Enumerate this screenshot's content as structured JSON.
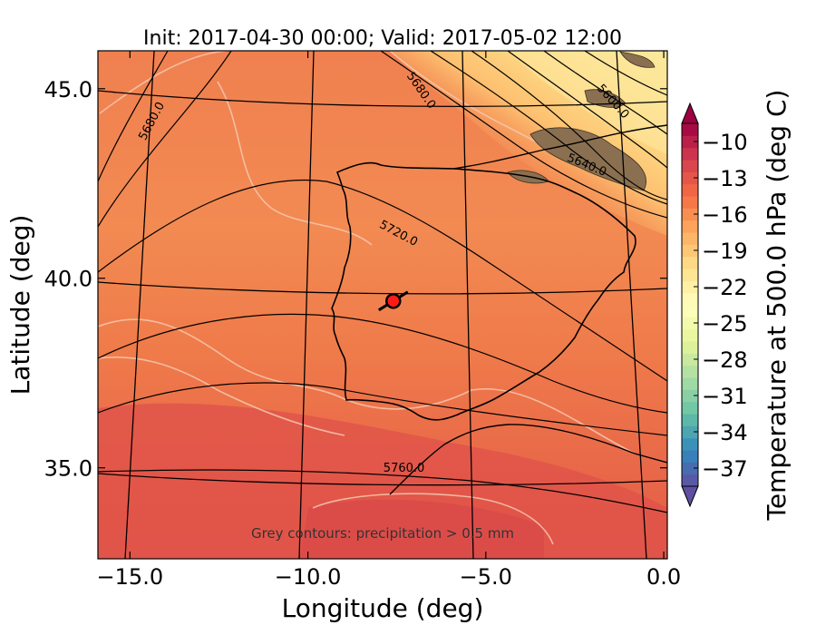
{
  "chart_data": {
    "type": "heatmap",
    "title": "Init: 2017-04-30 00:00; Valid: 2017-05-02 12:00",
    "xlabel": "Longitude (deg)",
    "ylabel": "Latitude (deg)",
    "xlim": [
      -15.9,
      0.1
    ],
    "ylim": [
      32.6,
      46.0
    ],
    "x_ticks": [
      -15.0,
      -10.0,
      -5.0,
      0.0
    ],
    "x_tick_labels": [
      "−15.0",
      "−10.0",
      "−5.0",
      "0.0"
    ],
    "y_ticks": [
      35.0,
      40.0,
      45.0
    ],
    "y_tick_labels": [
      "35.0",
      "40.0",
      "45.0"
    ],
    "colorbar": {
      "label": "Temperature at 500.0 hPa (deg C)",
      "min": -38.5,
      "max": -8.5,
      "step": 1,
      "extend": "both",
      "ticks": [
        -10,
        -13,
        -16,
        -19,
        -22,
        -25,
        -28,
        -31,
        -34,
        -37
      ],
      "tick_labels": [
        "−10",
        "−13",
        "−16",
        "−19",
        "−22",
        "−25",
        "−28",
        "−31",
        "−34",
        "−37"
      ],
      "colormap": "Spectral"
    },
    "contour_labels": [
      {
        "text": "5680.0",
        "lon": -14.3,
        "lat": 44.1,
        "angle": -62
      },
      {
        "text": "5680.0",
        "lon": -6.9,
        "lat": 44.9,
        "angle": 55
      },
      {
        "text": "5600.0",
        "lon": -1.5,
        "lat": 44.6,
        "angle": 48
      },
      {
        "text": "5640.0",
        "lon": -2.2,
        "lat": 42.9,
        "angle": 22
      },
      {
        "text": "5720.0",
        "lon": -7.5,
        "lat": 41.1,
        "angle": 28
      },
      {
        "text": "5760.0",
        "lon": -7.3,
        "lat": 34.9,
        "angle": 0
      }
    ],
    "marker": {
      "lon": -7.6,
      "lat": 39.4
    },
    "note": "Grey contours: precipitation > 0.5 mm"
  }
}
